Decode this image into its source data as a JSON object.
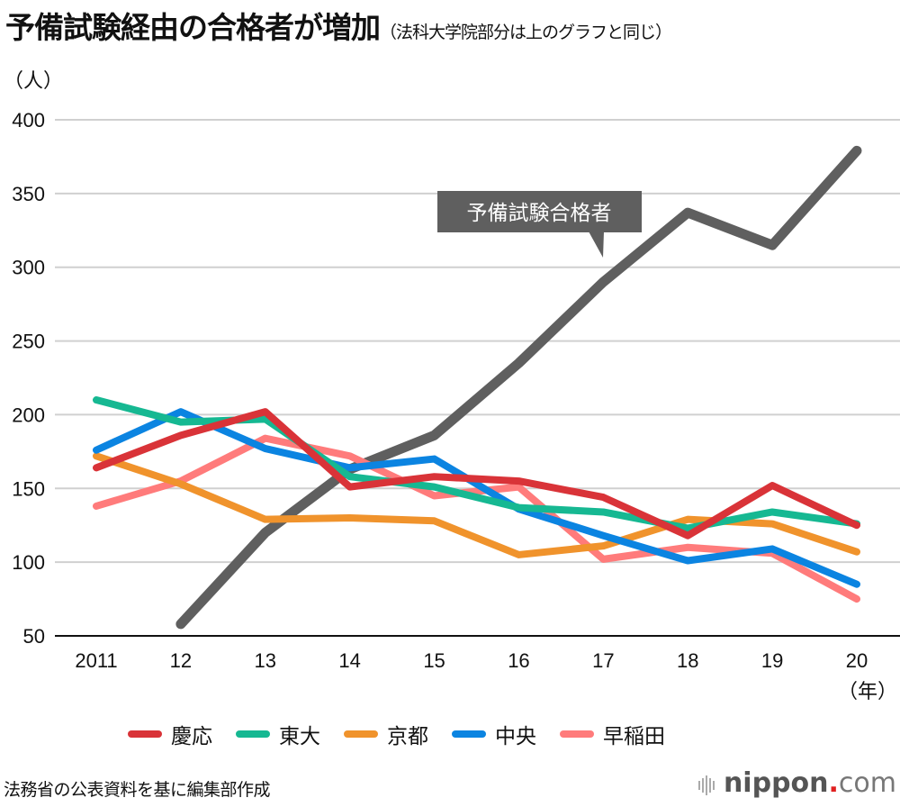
{
  "header": {
    "title": "予備試験経由の合格者が増加",
    "subtitle": "（法科大学院部分は上のグラフと同じ）",
    "unit": "（人）"
  },
  "chart_data": {
    "type": "line",
    "title": "予備試験経由の合格者が増加",
    "subtitle": "（法科大学院部分は上のグラフと同じ）",
    "ylabel": "（人）",
    "xlabel": "（年）",
    "ylim": [
      50,
      400
    ],
    "yticks": [
      50,
      100,
      150,
      200,
      250,
      300,
      350,
      400
    ],
    "grid": true,
    "categories": [
      "2011",
      "12",
      "13",
      "14",
      "15",
      "16",
      "17",
      "18",
      "19",
      "20"
    ],
    "series": [
      {
        "name": "予備試験合格者",
        "color": "#5f5f5f",
        "values": [
          null,
          58,
          120,
          163,
          186,
          235,
          290,
          337,
          315,
          379
        ]
      },
      {
        "name": "早稲田",
        "color": "#ff7b7b",
        "values": [
          138,
          155,
          184,
          172,
          145,
          151,
          102,
          110,
          106,
          75
        ]
      },
      {
        "name": "京都",
        "color": "#f0932c",
        "values": [
          172,
          153,
          129,
          130,
          128,
          105,
          111,
          129,
          126,
          107
        ]
      },
      {
        "name": "中央",
        "color": "#0b84e1",
        "values": [
          176,
          202,
          177,
          164,
          170,
          136,
          118,
          101,
          109,
          85
        ]
      },
      {
        "name": "東大",
        "color": "#16b892",
        "values": [
          210,
          195,
          197,
          158,
          151,
          137,
          134,
          123,
          134,
          126
        ]
      },
      {
        "name": "慶応",
        "color": "#d93338",
        "values": [
          164,
          186,
          202,
          151,
          158,
          155,
          144,
          118,
          152,
          125
        ]
      }
    ],
    "legend": {
      "placement": "bottom",
      "entries": [
        {
          "label": "慶応",
          "color": "#d93338"
        },
        {
          "label": "東大",
          "color": "#16b892"
        },
        {
          "label": "京都",
          "color": "#f0932c"
        },
        {
          "label": "中央",
          "color": "#0b84e1"
        },
        {
          "label": "早稲田",
          "color": "#ff7b7b"
        }
      ]
    },
    "annotations": [
      {
        "text": "予備試験合格者",
        "target_series": "予備試験合格者",
        "near_category": "17"
      }
    ]
  },
  "footer": {
    "source": "法務省の公表資料を基に編集部作成",
    "logo_brand": "nippon",
    "logo_dot": ".",
    "logo_tld": "com"
  }
}
